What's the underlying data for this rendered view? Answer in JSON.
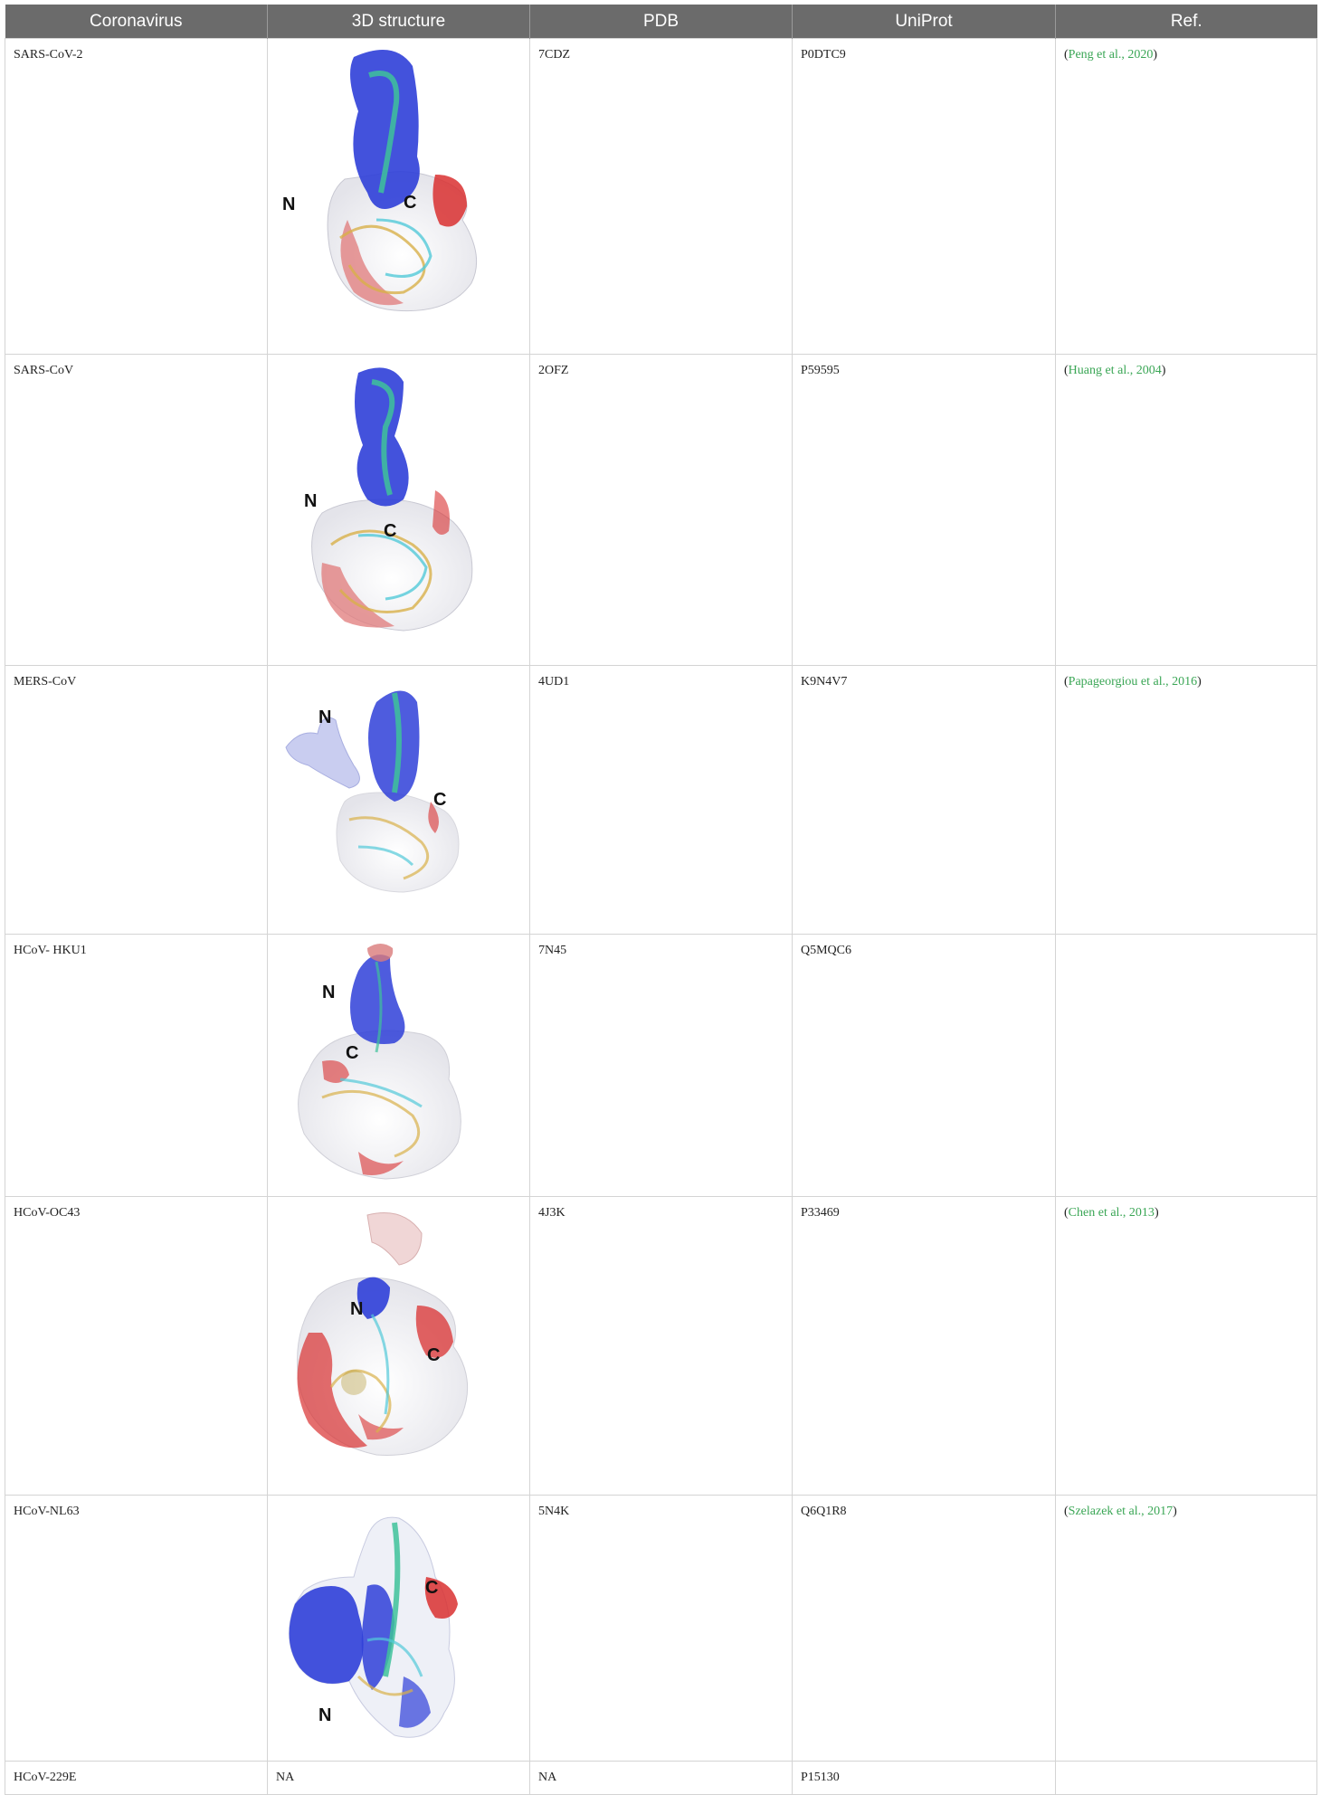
{
  "table": {
    "headers": [
      "Coronavirus",
      "3D structure",
      "PDB",
      "UniProt",
      "Ref."
    ],
    "rows": [
      {
        "coronavirus": "SARS-CoV-2",
        "structure": "image",
        "pdb": "7CDZ",
        "uniprot": "P0DTC9",
        "ref": "Peng et al., 2020"
      },
      {
        "coronavirus": "SARS-CoV",
        "structure": "image",
        "pdb": "2OFZ",
        "uniprot": "P59595",
        "ref": "Huang et al., 2004"
      },
      {
        "coronavirus": "MERS-CoV",
        "structure": "image",
        "pdb": "4UD1",
        "uniprot": "K9N4V7",
        "ref": "Papageorgiou et al., 2016"
      },
      {
        "coronavirus": "HCoV- HKU1",
        "structure": "image",
        "pdb": "7N45",
        "uniprot": "Q5MQC6",
        "ref": ""
      },
      {
        "coronavirus": "HCoV-OC43",
        "structure": "image",
        "pdb": "4J3K",
        "uniprot": "P33469",
        "ref": "Chen et al., 2013"
      },
      {
        "coronavirus": "HCoV-NL63",
        "structure": "image",
        "pdb": "5N4K",
        "uniprot": "Q6Q1R8",
        "ref": "Szelazek et al., 2017"
      },
      {
        "coronavirus": "HCoV-229E",
        "structure": "NA",
        "pdb": "NA",
        "uniprot": "P15130",
        "ref": ""
      }
    ],
    "terminus_labels": {
      "n": "N",
      "c": "C"
    }
  },
  "colors": {
    "header_bg": "#6b6b6b",
    "reference_link": "#3aa655",
    "positive_surface": "#2f3fd8",
    "negative_surface": "#d93030",
    "neutral_surface": "#f2f2f2"
  }
}
